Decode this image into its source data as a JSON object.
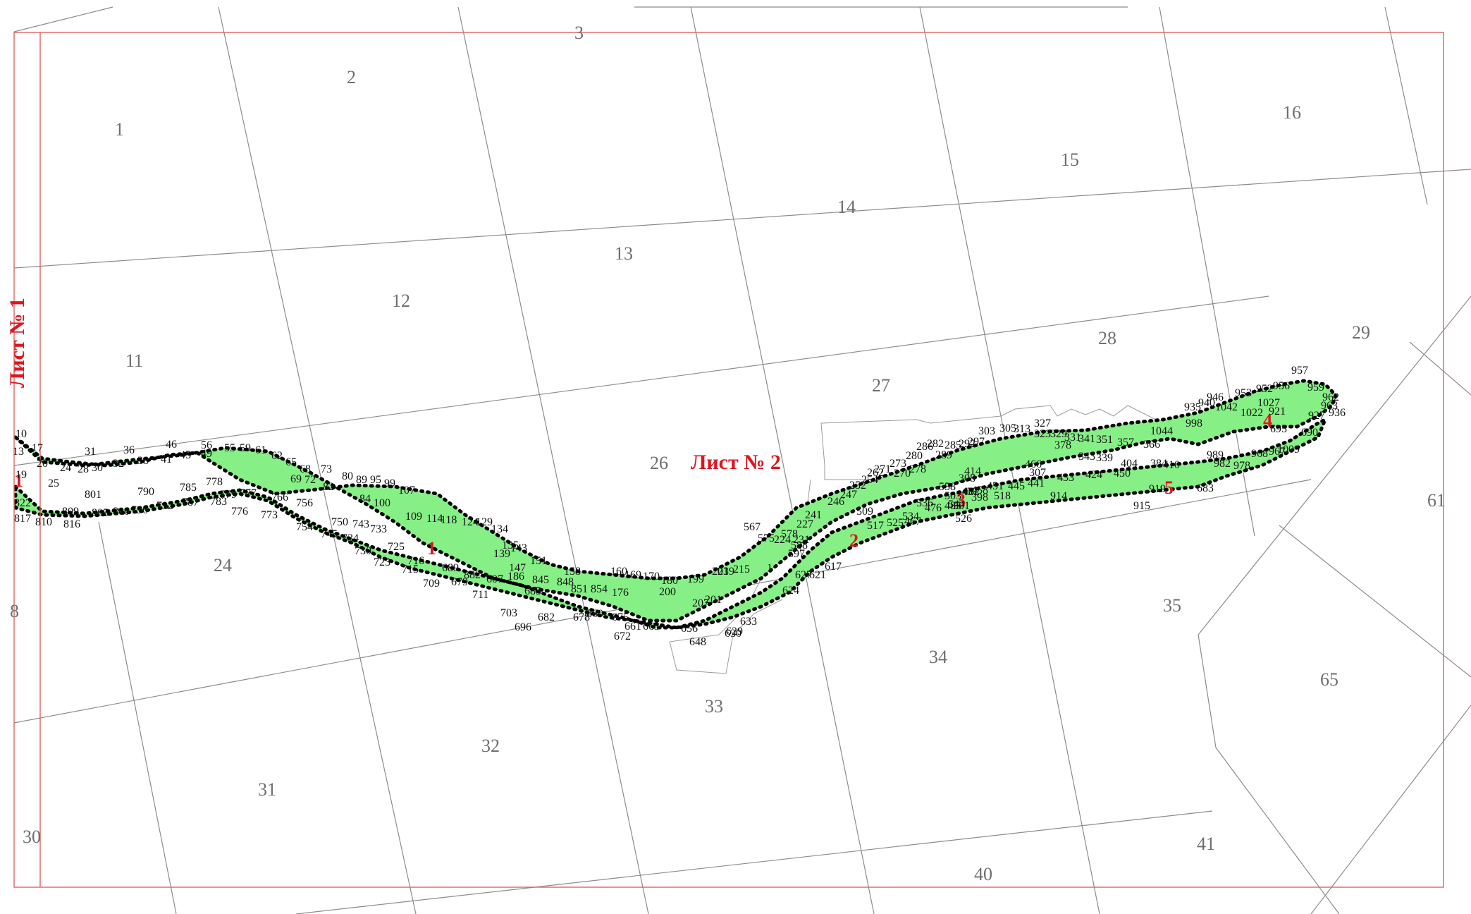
{
  "colors": {
    "strip": "#86f086",
    "frame": "#e06060",
    "sheet_label": "#e0141e",
    "grid": "#8c8c8c"
  },
  "sheets": [
    "Лист № 1",
    "Лист № 2"
  ],
  "zones": [
    "1",
    "2",
    "3",
    "4",
    "5",
    "1"
  ],
  "parcels": [
    "3",
    "2",
    "1",
    "16",
    "15",
    "14",
    "13",
    "12",
    "11",
    "29",
    "28",
    "27",
    "26",
    "24",
    "61",
    "35",
    "34",
    "33",
    "32",
    "31",
    "30",
    "65",
    "41",
    "40",
    "8"
  ],
  "points": [
    "10",
    "17",
    "31",
    "36",
    "46",
    "56",
    "55",
    "59",
    "61",
    "62",
    "65",
    "68",
    "73",
    "80",
    "89",
    "95",
    "99",
    "107",
    "13",
    "20",
    "24",
    "28",
    "30",
    "32",
    "38",
    "41",
    "45",
    "49",
    "19",
    "25",
    "801",
    "790",
    "785",
    "778",
    "779",
    "777",
    "766",
    "756",
    "750",
    "743",
    "733",
    "725",
    "716",
    "709",
    "715",
    "723",
    "730",
    "734",
    "745",
    "754",
    "773",
    "776",
    "783",
    "787",
    "792",
    "796",
    "800",
    "805",
    "809",
    "816",
    "810",
    "817",
    "822",
    "69",
    "72",
    "82",
    "84",
    "100",
    "109",
    "114",
    "118",
    "124",
    "129",
    "134",
    "135",
    "139",
    "143",
    "147",
    "151",
    "158",
    "160",
    "169",
    "170",
    "180",
    "199",
    "203",
    "215",
    "219",
    "207",
    "201",
    "200",
    "176",
    "854",
    "851",
    "848",
    "845",
    "685",
    "682",
    "678",
    "860",
    "675",
    "672",
    "661",
    "663",
    "656",
    "648",
    "630",
    "629",
    "633",
    "624",
    "627",
    "621",
    "617",
    "597",
    "588",
    "578",
    "575",
    "567",
    "224",
    "231",
    "227",
    "241",
    "246",
    "247",
    "252",
    "254",
    "262",
    "271",
    "273",
    "270",
    "280",
    "278",
    "286",
    "282",
    "289",
    "285",
    "292",
    "297",
    "303",
    "305",
    "313",
    "323",
    "327",
    "329",
    "331",
    "341",
    "351",
    "357",
    "366",
    "378",
    "343",
    "339",
    "404",
    "384",
    "410",
    "414",
    "308",
    "307",
    "466",
    "457",
    "398",
    "518",
    "526",
    "544",
    "558",
    "536",
    "534",
    "525",
    "517",
    "509",
    "503",
    "501",
    "482",
    "485",
    "476",
    "467",
    "458",
    "451",
    "445",
    "441",
    "433",
    "424",
    "450",
    "919",
    "915",
    "914",
    "935",
    "940",
    "946",
    "953",
    "952",
    "956",
    "957",
    "959",
    "962",
    "963",
    "936",
    "927",
    "921",
    "1027",
    "1022",
    "1042",
    "1044",
    "998",
    "989",
    "982",
    "978",
    "968",
    "967",
    "1009",
    "695",
    "690",
    "683",
    "679",
    "711",
    "703",
    "696",
    "689",
    "882",
    "607",
    "186",
    "1"
  ]
}
